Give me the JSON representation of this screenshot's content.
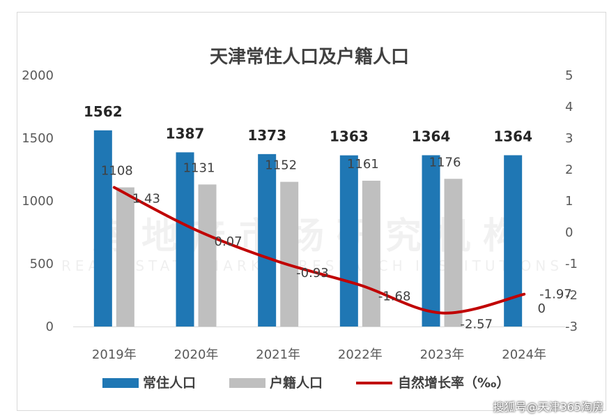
{
  "chart_data": {
    "type": "bar",
    "title": "天津常住人口及户籍人口",
    "categories": [
      "2019年",
      "2020年",
      "2021年",
      "2022年",
      "2023年",
      "2024年"
    ],
    "series": [
      {
        "name": "常住人口",
        "type": "bar",
        "axis": "left",
        "color": "#1f77b4",
        "values": [
          1562,
          1387,
          1373,
          1363,
          1364,
          1364
        ]
      },
      {
        "name": "户籍人口",
        "type": "bar",
        "axis": "left",
        "color": "#bfbfbf",
        "values": [
          1108,
          1131,
          1152,
          1161,
          1176,
          0
        ]
      },
      {
        "name": "自然增长率（‰）",
        "type": "line",
        "axis": "right",
        "color": "#c00000",
        "values": [
          1.43,
          0.07,
          -0.93,
          -1.68,
          -2.57,
          -1.97
        ]
      }
    ],
    "left_axis": {
      "ylim": [
        0,
        2000
      ],
      "ticks": [
        "0",
        "500",
        "1000",
        "1500",
        "2000"
      ]
    },
    "right_axis": {
      "ylim": [
        -3,
        5
      ],
      "ticks": [
        "-3",
        "-2",
        "-1",
        "0",
        "1",
        "2",
        "3",
        "4",
        "5"
      ]
    },
    "legend_position": "bottom",
    "grid": false
  },
  "watermark": {
    "main": "房地产市场研究机构",
    "sub": "REAL ESTATE MARKET RESEARCH INSTITUTIONS"
  },
  "credit": "搜狐号@天津365淘房"
}
